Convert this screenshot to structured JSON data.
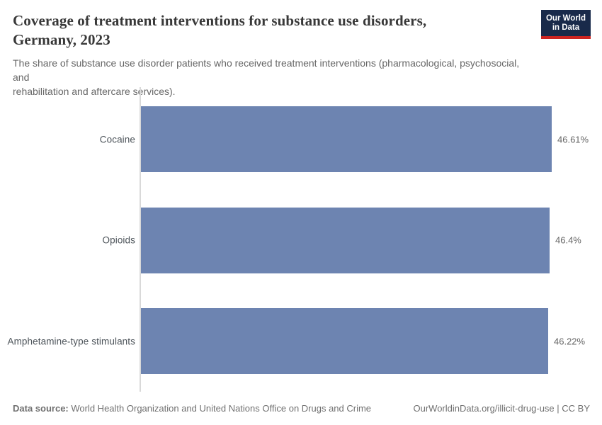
{
  "header": {
    "title_lines": [
      "Coverage of treatment interventions for substance use disorders,",
      "Germany, 2023"
    ],
    "subtitle_lines": [
      "The share of substance use disorder patients who received treatment interventions (pharmacological, psychosocial, and",
      "rehabilitation and aftercare services)."
    ],
    "logo": {
      "line1": "Our World",
      "line2": "in Data",
      "bg_color": "#192a4a",
      "accent_color": "#cc2421"
    }
  },
  "chart_data": {
    "type": "bar",
    "orientation": "horizontal",
    "title": "Coverage of treatment interventions for substance use disorders, Germany, 2023",
    "categories": [
      "Cocaine",
      "Opioids",
      "Amphetamine-type stimulants"
    ],
    "values": [
      46.61,
      46.4,
      46.22
    ],
    "value_labels": [
      "46.61%",
      "46.4%",
      "46.22%"
    ],
    "value_suffix": "%",
    "xlim": [
      0,
      46.61
    ],
    "grid": false,
    "legend": false,
    "bar_color": "#6d84b1",
    "axis_line_color": "#d9d9d9"
  },
  "footer": {
    "data_source_label": "Data source:",
    "data_source_text": " World Health Organization and United Nations Office on Drugs and Crime",
    "right_text": "OurWorldinData.org/illicit-drug-use | CC BY"
  }
}
